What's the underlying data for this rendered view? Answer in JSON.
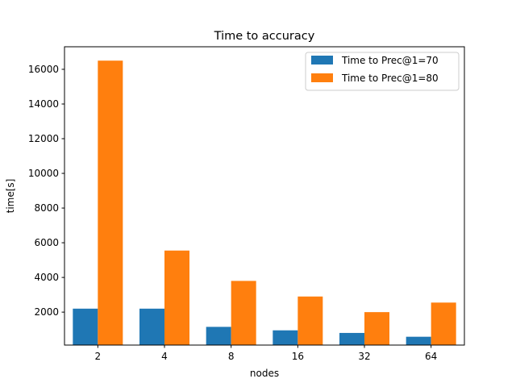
{
  "chart_data": {
    "type": "bar",
    "title": "Time to accuracy",
    "xlabel": "nodes",
    "ylabel": "time[s]",
    "categories": [
      "2",
      "4",
      "8",
      "16",
      "32",
      "64"
    ],
    "series": [
      {
        "name": "Time to Prec@1=70",
        "color": "#1f77b4",
        "values": [
          2200,
          2200,
          1150,
          950,
          800,
          580
        ]
      },
      {
        "name": "Time to Prec@1=80",
        "color": "#ff7f0e",
        "values": [
          16500,
          5550,
          3800,
          2900,
          2000,
          2550
        ]
      }
    ],
    "ylim": [
      100,
      17300
    ],
    "yticks": [
      2000,
      4000,
      6000,
      8000,
      10000,
      12000,
      14000,
      16000
    ],
    "ytick_labels": [
      "2000",
      "4000",
      "6000",
      "8000",
      "10000",
      "12000",
      "14000",
      "16000"
    ],
    "legend_position": "top-right",
    "grid": false
  }
}
